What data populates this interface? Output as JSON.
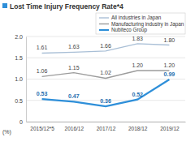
{
  "chart_data": {
    "type": "line",
    "title": "Lost Time Injury Frequency Rate*4",
    "y_label": "(%)",
    "categories": [
      "2015/12*5",
      "2016/12",
      "2017/12",
      "2018/12",
      "2019/12"
    ],
    "series": [
      {
        "name": "All industries in Japan",
        "color": "#a9bfd6",
        "values": [
          1.61,
          1.63,
          1.66,
          1.83,
          1.8
        ],
        "value_labels": [
          "1.61",
          "1.63",
          "1.66",
          "1.83",
          "1.80"
        ]
      },
      {
        "name": "Manufacturing industry in Japan",
        "color": "#9c9c9c",
        "values": [
          1.06,
          1.15,
          1.02,
          1.2,
          1.2
        ],
        "value_labels": [
          "1.06",
          "1.15",
          "1.02",
          "1.20",
          "1.20"
        ]
      },
      {
        "name": "Nubiteco Group",
        "color": "#2e8fd9",
        "values": [
          0.53,
          0.47,
          0.36,
          0.52,
          0.99
        ],
        "value_labels": [
          "0.53",
          "0.47",
          "0.36",
          "0.52",
          "0.99"
        ]
      }
    ],
    "ylim": [
      0,
      2
    ],
    "yticks": [
      0,
      0.5,
      {
        "value": 1,
        "label": "1.0"
      },
      1.5,
      {
        "value": 2,
        "label": "2.0"
      }
    ],
    "grid": true,
    "data_labels": true,
    "legend": "upper right"
  }
}
